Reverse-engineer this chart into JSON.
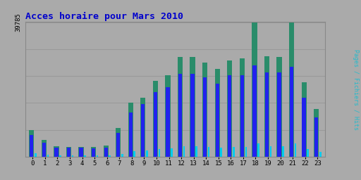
{
  "title": "Acces horaire pour Mars 2010",
  "ylabel_rotated": "Pages / Fichiers / Hits",
  "hours": [
    0,
    1,
    2,
    3,
    4,
    5,
    6,
    7,
    8,
    9,
    10,
    11,
    12,
    13,
    14,
    15,
    16,
    17,
    18,
    19,
    20,
    21,
    22,
    23
  ],
  "pages": [
    6500,
    4200,
    2600,
    2600,
    2600,
    2400,
    2700,
    7000,
    13000,
    15500,
    19000,
    20500,
    24500,
    24500,
    23500,
    21500,
    24000,
    24000,
    27000,
    25000,
    25000,
    26500,
    17500,
    11500
  ],
  "fichiers": [
    7800,
    4900,
    3100,
    2900,
    2900,
    2800,
    3300,
    8500,
    16000,
    17500,
    22500,
    24000,
    29500,
    29500,
    27800,
    26000,
    28500,
    29000,
    39785,
    29800,
    29500,
    39785,
    22000,
    14000
  ],
  "hits": [
    900,
    650,
    400,
    380,
    380,
    350,
    400,
    850,
    1600,
    1800,
    2200,
    2400,
    3000,
    3000,
    2800,
    2600,
    2800,
    2800,
    3900,
    3000,
    3000,
    3900,
    2200,
    1400
  ],
  "color_pages": "#2222ee",
  "color_fichiers": "#2a8c6a",
  "color_hits": "#00ccee",
  "background_color": "#aaaaaa",
  "plot_bg_color": "#aaaaaa",
  "ymax": 39785,
  "ytick_label": "39785",
  "title_color": "#0000cc",
  "ylabel_color": "#22bbcc",
  "grid_color": "#999999"
}
